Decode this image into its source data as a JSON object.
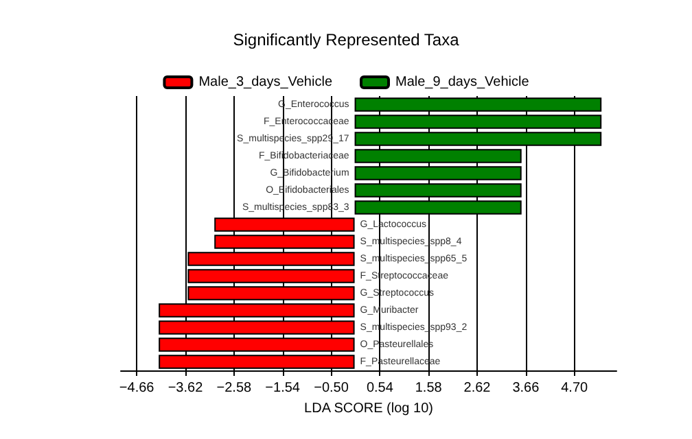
{
  "chart_data": {
    "type": "bar",
    "orientation": "horizontal",
    "stacked": true,
    "title": "Significantly Represented Taxa",
    "xlabel": "LDA SCORE (log 10)",
    "categories": [
      "G_Enterococcus",
      "F_Enterococcaceae",
      "S_multispecies_spp29_17",
      "F_Bifidobacteriaceae",
      "G_Bifidobacterium",
      "O_Bifidobacteriales",
      "S_multispecies_spp83_3",
      "G_Lactococcus",
      "S_multispecies_spp8_4",
      "S_multispecies_spp65_5",
      "F_Streptococcaceae",
      "G_Streptococcus",
      "G_Muribacter",
      "S_multispecies_spp93_2",
      "O_Pasteurellales",
      "F_Pasteurellaceae"
    ],
    "series": [
      {
        "name": "Male_3_days_Vehicle",
        "color": "#ff0000",
        "values": [
          null,
          null,
          null,
          null,
          null,
          null,
          null,
          -3.0,
          -3.0,
          -3.57,
          -3.57,
          -3.57,
          -4.19,
          -4.19,
          -4.19,
          -4.19
        ]
      },
      {
        "name": "Male_9_days_Vehicle",
        "color": "#008000",
        "values": [
          5.28,
          5.28,
          5.28,
          3.57,
          3.57,
          3.57,
          3.57,
          null,
          null,
          null,
          null,
          null,
          null,
          null,
          null,
          null
        ]
      }
    ],
    "xlim": [
      -5.0,
      5.6
    ],
    "xticks": [
      {
        "value": -4.66,
        "label": "−4.66"
      },
      {
        "value": -3.62,
        "label": "−3.62"
      },
      {
        "value": -2.58,
        "label": "−2.58"
      },
      {
        "value": -1.54,
        "label": "−1.54"
      },
      {
        "value": -0.5,
        "label": "−0.50"
      },
      {
        "value": 0.54,
        "label": "0.54"
      },
      {
        "value": 1.58,
        "label": "1.58"
      },
      {
        "value": 2.62,
        "label": "2.62"
      },
      {
        "value": 3.66,
        "label": "3.66"
      },
      {
        "value": 4.7,
        "label": "4.70"
      }
    ],
    "grid": "x",
    "legend": "top"
  }
}
